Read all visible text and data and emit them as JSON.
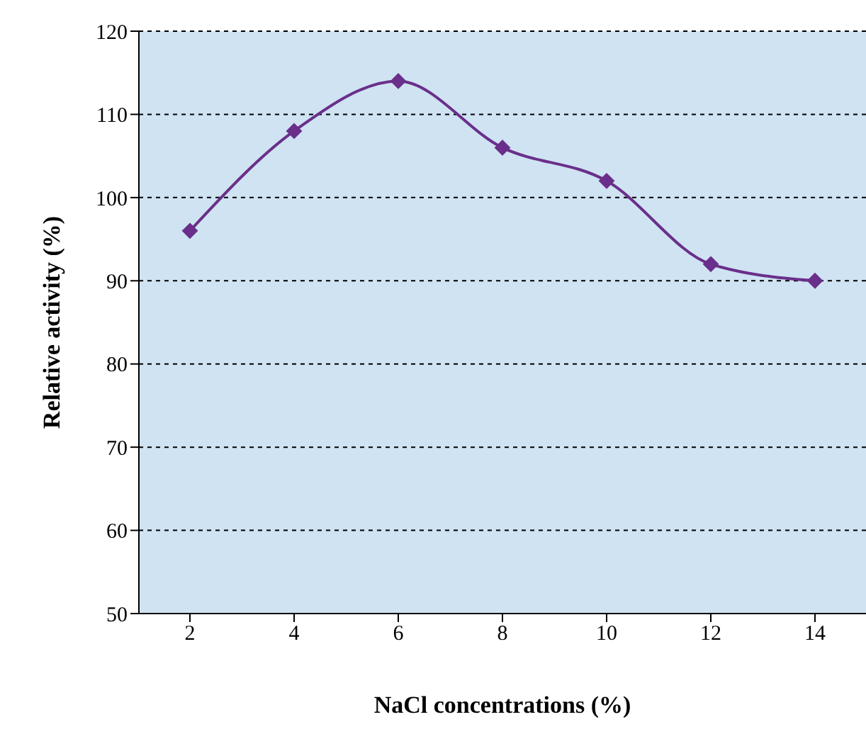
{
  "chart_data": {
    "type": "line",
    "xlabel": "NaCl concentrations (%)",
    "ylabel": "Relative activity (%)",
    "categories": [
      "2",
      "4",
      "6",
      "8",
      "10",
      "12",
      "14"
    ],
    "series": [
      {
        "color": "#6a2f8a",
        "values": [
          96,
          108,
          114,
          106,
          102,
          92,
          90
        ]
      }
    ],
    "ylim": [
      50,
      120
    ],
    "yticks": [
      50,
      60,
      70,
      80,
      90,
      100,
      110,
      120
    ],
    "grid": "y",
    "marker": "diamond",
    "line_style": "solid",
    "legend": false
  }
}
